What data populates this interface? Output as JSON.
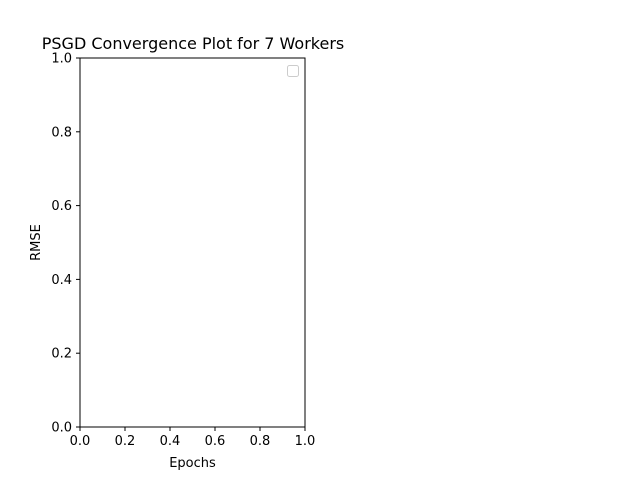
{
  "chart_data": {
    "type": "line",
    "title": "PSGD Convergence Plot for 7 Workers",
    "xlabel": "Epochs",
    "ylabel": "RMSE",
    "xlim": [
      0.0,
      1.0
    ],
    "ylim": [
      0.0,
      1.0
    ],
    "xticks": [
      "0.0",
      "0.2",
      "0.4",
      "0.6",
      "0.8",
      "1.0"
    ],
    "yticks": [
      "0.0",
      "0.2",
      "0.4",
      "0.6",
      "0.8",
      "1.0"
    ],
    "series": [],
    "grid": false,
    "legend": {
      "placement": "top-right",
      "entries": []
    }
  }
}
